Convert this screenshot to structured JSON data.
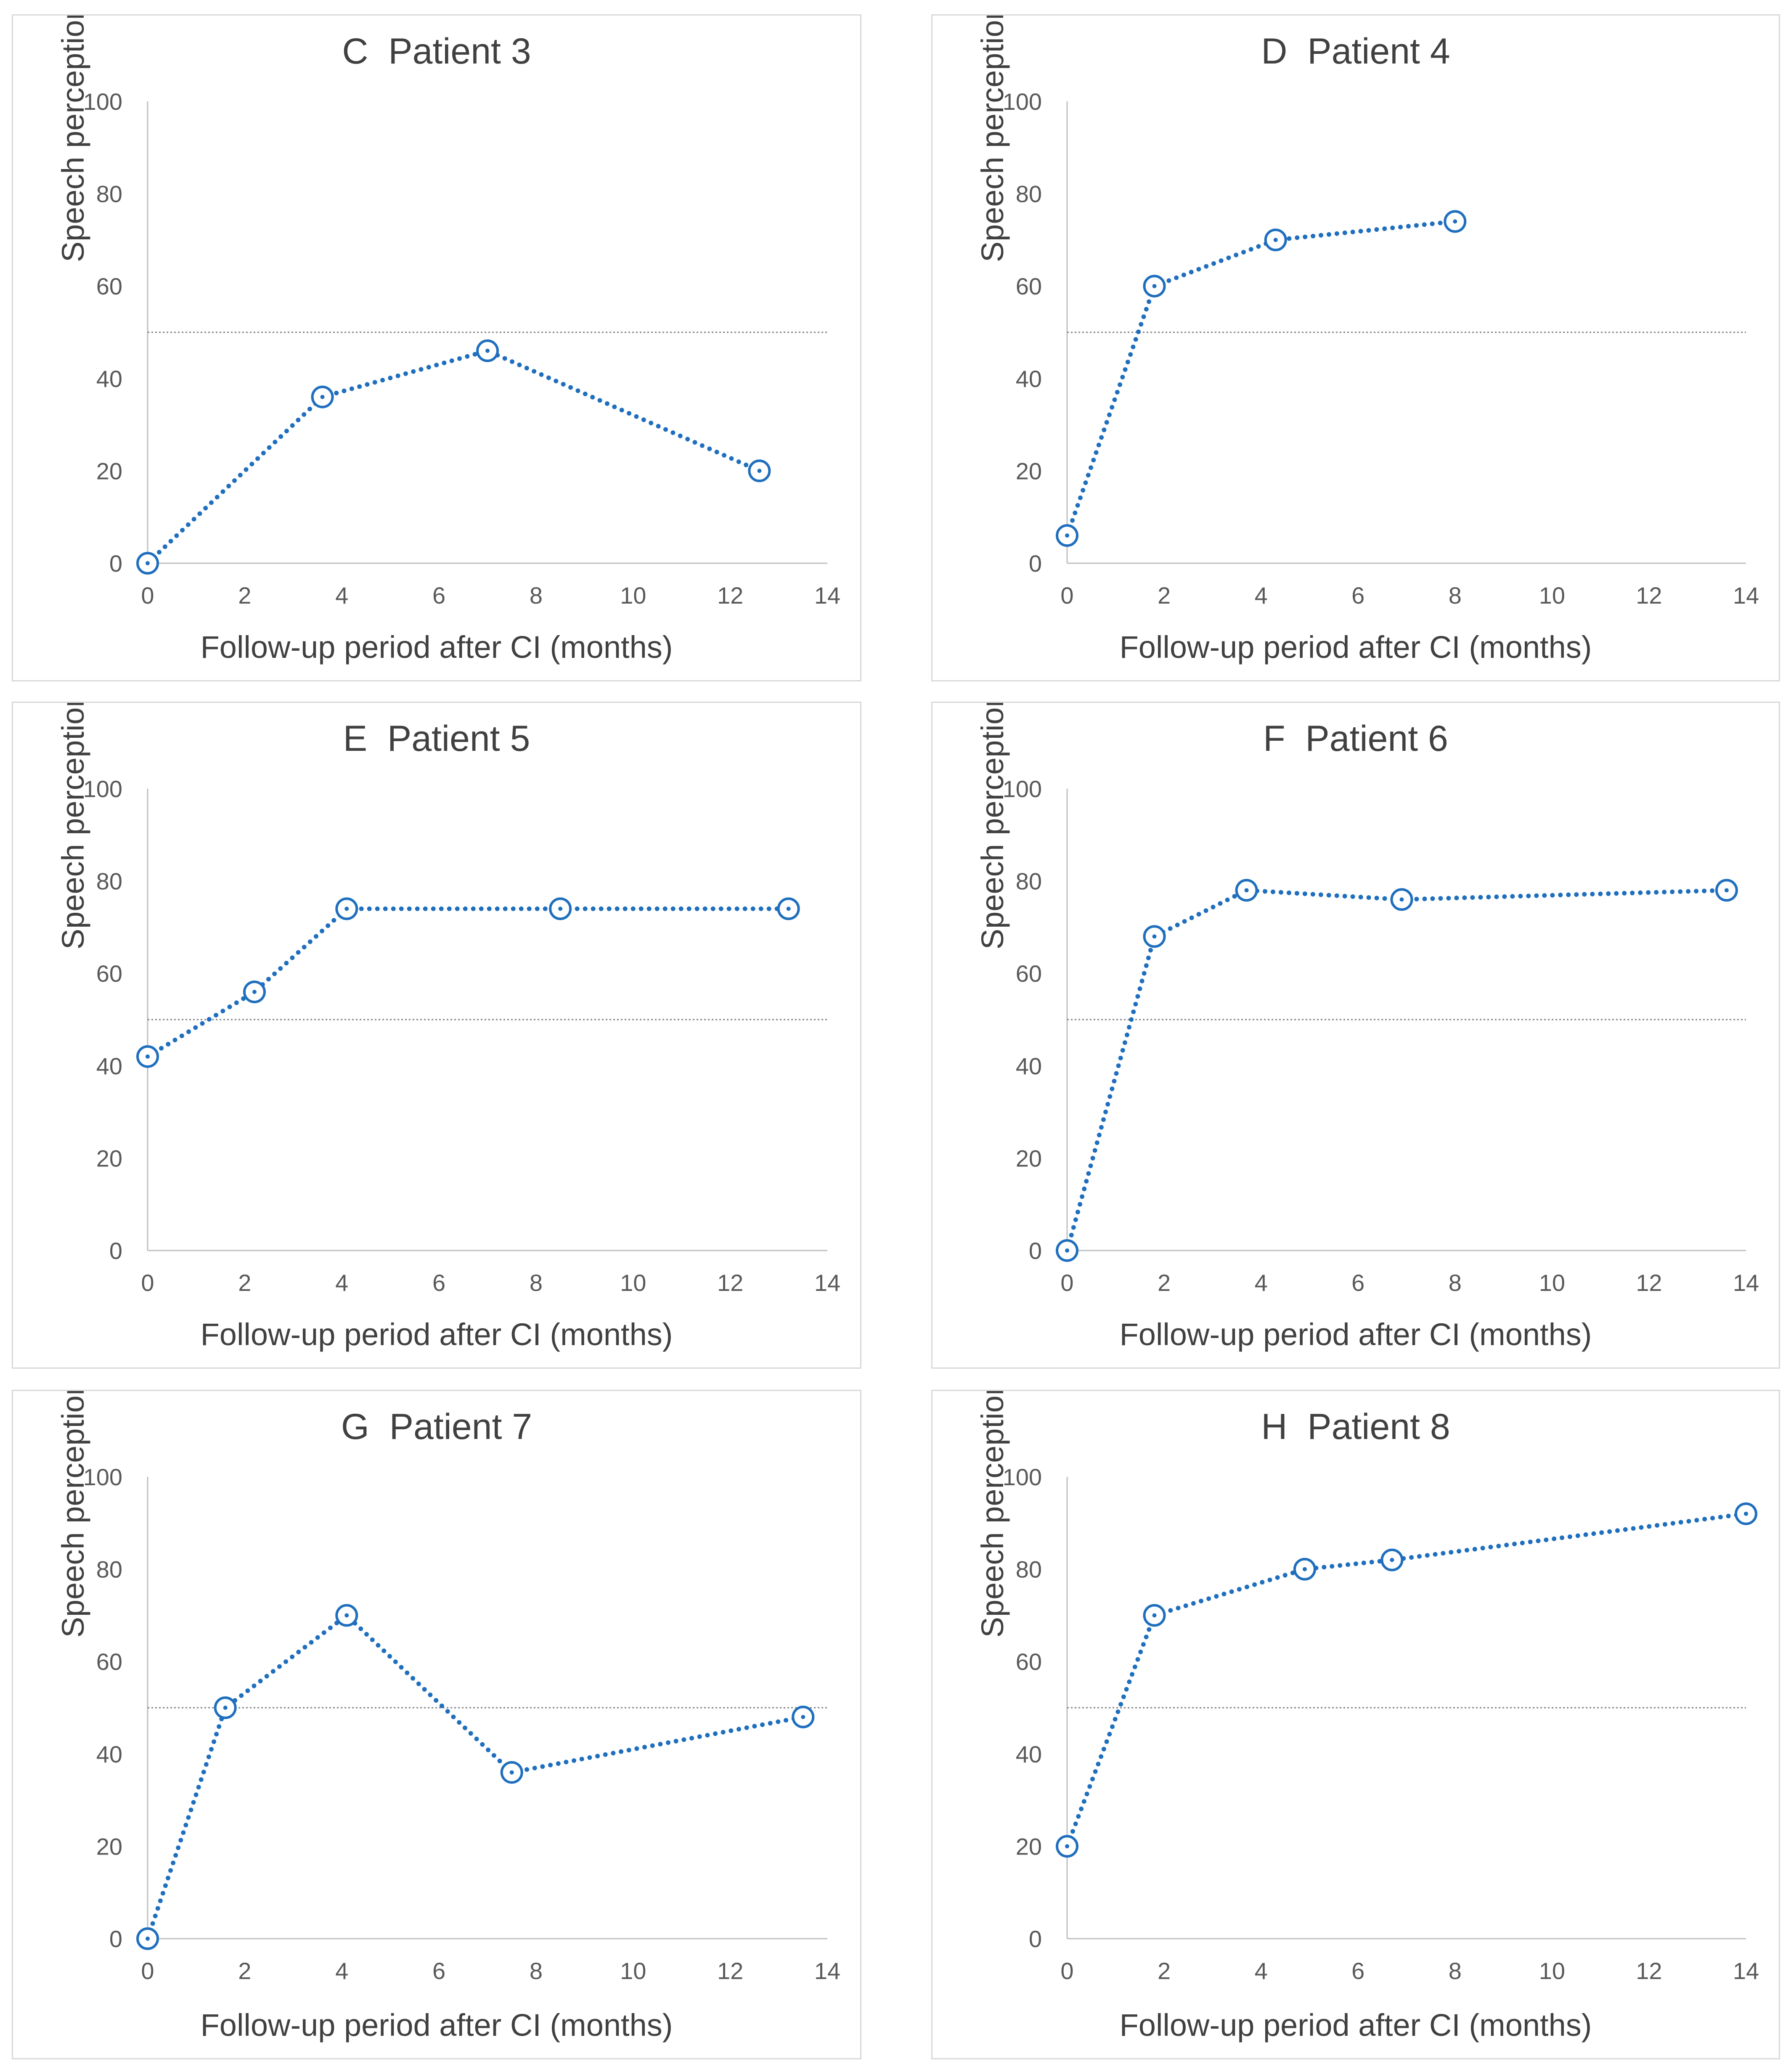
{
  "colors": {
    "series": "#1f6fbe",
    "reference_line": "#7f7f7f",
    "axis": "#bfbfbf",
    "text": "#404040"
  },
  "chart_data": [
    {
      "type": "line",
      "title": "C  Patient 3",
      "xlabel": "Follow-up period after CI (months)",
      "ylabel": "Speech perception (%)",
      "xlim": [
        0,
        14
      ],
      "ylim": [
        0,
        100
      ],
      "xticks": [
        0,
        2,
        4,
        6,
        8,
        10,
        12,
        14
      ],
      "yticks": [
        0,
        20,
        40,
        60,
        80,
        100
      ],
      "reference_line_y": 50,
      "x": [
        0,
        3.6,
        7,
        12.6
      ],
      "values": [
        0,
        36,
        46,
        20
      ]
    },
    {
      "type": "line",
      "title": "D  Patient 4",
      "xlabel": "Follow-up period after CI (months)",
      "ylabel": "Speech perception (%)",
      "xlim": [
        0,
        14
      ],
      "ylim": [
        0,
        100
      ],
      "xticks": [
        0,
        2,
        4,
        6,
        8,
        10,
        12,
        14
      ],
      "yticks": [
        0,
        20,
        40,
        60,
        80,
        100
      ],
      "reference_line_y": 50,
      "x": [
        0,
        1.8,
        4.3,
        8
      ],
      "values": [
        6,
        60,
        70,
        74
      ]
    },
    {
      "type": "line",
      "title": "E  Patient 5",
      "xlabel": "Follow-up period after CI (months)",
      "ylabel": "Speech perception (%)",
      "xlim": [
        0,
        14
      ],
      "ylim": [
        0,
        100
      ],
      "xticks": [
        0,
        2,
        4,
        6,
        8,
        10,
        12,
        14
      ],
      "yticks": [
        0,
        20,
        40,
        60,
        80,
        100
      ],
      "reference_line_y": 50,
      "x": [
        0,
        2.2,
        4.1,
        8.5,
        13.2
      ],
      "values": [
        42,
        56,
        74,
        74,
        74
      ]
    },
    {
      "type": "line",
      "title": "F  Patient 6",
      "xlabel": "Follow-up period after CI (months)",
      "ylabel": "Speech perception (%)",
      "xlim": [
        0,
        14
      ],
      "ylim": [
        0,
        100
      ],
      "xticks": [
        0,
        2,
        4,
        6,
        8,
        10,
        12,
        14
      ],
      "yticks": [
        0,
        20,
        40,
        60,
        80,
        100
      ],
      "reference_line_y": 50,
      "x": [
        0,
        1.8,
        3.7,
        6.9,
        13.6
      ],
      "values": [
        0,
        68,
        78,
        76,
        78
      ]
    },
    {
      "type": "line",
      "title": "G  Patient 7",
      "xlabel": "Follow-up period after CI (months)",
      "ylabel": "Speech perception (%)",
      "xlim": [
        0,
        14
      ],
      "ylim": [
        0,
        100
      ],
      "xticks": [
        0,
        2,
        4,
        6,
        8,
        10,
        12,
        14
      ],
      "yticks": [
        0,
        20,
        40,
        60,
        80,
        100
      ],
      "reference_line_y": 50,
      "x": [
        0,
        1.6,
        4.1,
        7.5,
        13.5
      ],
      "values": [
        0,
        50,
        70,
        36,
        48
      ]
    },
    {
      "type": "line",
      "title": "H  Patient 8",
      "xlabel": "Follow-up period after CI (months)",
      "ylabel": "Speech perception (%)",
      "xlim": [
        0,
        14
      ],
      "ylim": [
        0,
        100
      ],
      "xticks": [
        0,
        2,
        4,
        6,
        8,
        10,
        12,
        14
      ],
      "yticks": [
        0,
        20,
        40,
        60,
        80,
        100
      ],
      "reference_line_y": 50,
      "x": [
        0,
        1.8,
        4.9,
        6.7,
        14
      ],
      "values": [
        20,
        70,
        80,
        82,
        92
      ]
    }
  ]
}
